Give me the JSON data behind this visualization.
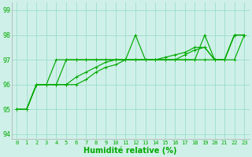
{
  "xlabel": "Humidité relative (%)",
  "background_color": "#cff0e8",
  "grid_color": "#99ddcc",
  "line_color": "#00aa00",
  "xlim": [
    -0.5,
    23.5
  ],
  "ylim": [
    93.8,
    99.3
  ],
  "yticks": [
    94,
    95,
    96,
    97,
    98,
    99
  ],
  "xticks": [
    0,
    1,
    2,
    3,
    4,
    5,
    6,
    7,
    8,
    9,
    10,
    11,
    12,
    13,
    14,
    15,
    16,
    17,
    18,
    19,
    20,
    21,
    22,
    23
  ],
  "lines": [
    {
      "y": [
        95,
        95,
        96,
        96,
        97,
        97,
        97,
        97,
        97,
        97,
        97,
        97,
        98,
        97,
        97,
        97,
        97,
        97,
        97,
        98,
        97,
        97,
        98,
        98
      ]
    },
    {
      "y": [
        95,
        95,
        96,
        96,
        96,
        97,
        97,
        97,
        97,
        97,
        97,
        97,
        97,
        97,
        97,
        97,
        97,
        97,
        97,
        97,
        97,
        97,
        98,
        98
      ]
    },
    {
      "y": [
        95,
        95,
        96,
        96,
        96,
        96,
        96.3,
        96.5,
        96.7,
        96.9,
        97,
        97,
        97,
        97,
        97,
        97.1,
        97.2,
        97.3,
        97.5,
        97.5,
        97,
        97,
        97,
        98
      ]
    },
    {
      "y": [
        95,
        95,
        96,
        96,
        96,
        96,
        96,
        96.2,
        96.5,
        96.7,
        96.8,
        97,
        97,
        97,
        97,
        97,
        97,
        97.2,
        97.4,
        97.5,
        97,
        97,
        98,
        98
      ]
    }
  ],
  "markersize": 2.5,
  "linewidth": 0.85,
  "tick_fontsize": 6,
  "xlabel_fontsize": 7
}
